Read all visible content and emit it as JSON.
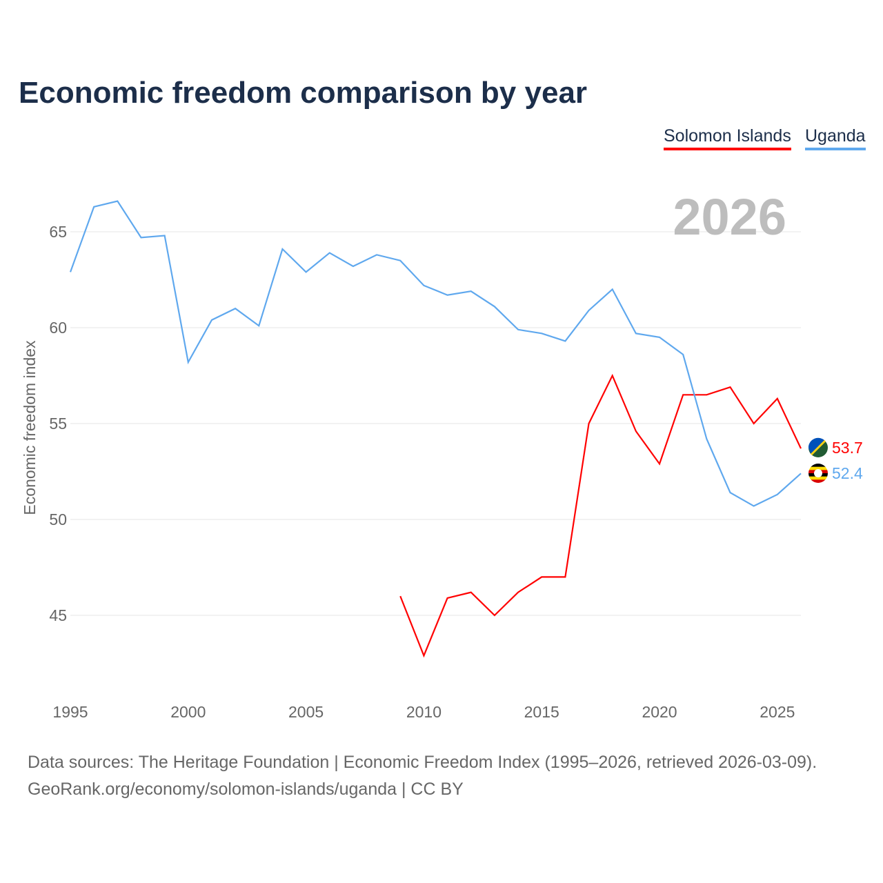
{
  "chart_data": {
    "type": "line",
    "title": "Economic freedom comparison by year",
    "ylabel": "Economic freedom index",
    "xlabel": "",
    "xlim": [
      1995,
      2026
    ],
    "ylim": [
      41.5,
      67.5
    ],
    "xticks": [
      "1995",
      "2000",
      "2005",
      "2010",
      "2015",
      "2020",
      "2025"
    ],
    "yticks": [
      "45",
      "50",
      "55",
      "60",
      "65"
    ],
    "grid": true,
    "legend_position": "top-right",
    "watermark_year": "2026",
    "series": [
      {
        "name": "Solomon Islands",
        "color": "#ff0000",
        "end_label": "53.7",
        "x": [
          2009,
          2010,
          2011,
          2012,
          2013,
          2014,
          2015,
          2016,
          2017,
          2018,
          2019,
          2020,
          2021,
          2022,
          2023,
          2024,
          2025,
          2026
        ],
        "values": [
          46.0,
          42.9,
          45.9,
          46.2,
          45.0,
          46.2,
          47.0,
          47.0,
          55.0,
          57.5,
          54.6,
          52.9,
          56.5,
          56.5,
          56.9,
          55.0,
          56.3,
          53.7
        ]
      },
      {
        "name": "Uganda",
        "color": "#5fa8ee",
        "end_label": "52.4",
        "x": [
          1995,
          1996,
          1997,
          1998,
          1999,
          2000,
          2001,
          2002,
          2003,
          2004,
          2005,
          2006,
          2007,
          2008,
          2009,
          2010,
          2011,
          2012,
          2013,
          2014,
          2015,
          2016,
          2017,
          2018,
          2019,
          2020,
          2021,
          2022,
          2023,
          2024,
          2025,
          2026
        ],
        "values": [
          62.9,
          66.3,
          66.6,
          64.7,
          64.8,
          58.2,
          60.4,
          61.0,
          60.1,
          64.1,
          62.9,
          63.9,
          63.2,
          63.8,
          63.5,
          62.2,
          61.7,
          61.9,
          61.1,
          59.9,
          59.7,
          59.3,
          60.9,
          62.0,
          59.7,
          59.5,
          58.6,
          54.2,
          51.4,
          50.7,
          51.3,
          52.4
        ]
      }
    ]
  },
  "source_line1": "Data sources: The Heritage Foundation | Economic Freedom Index (1995–2026, retrieved 2026-03-09).",
  "source_line2": "GeoRank.org/economy/solomon-islands/uganda | CC BY"
}
